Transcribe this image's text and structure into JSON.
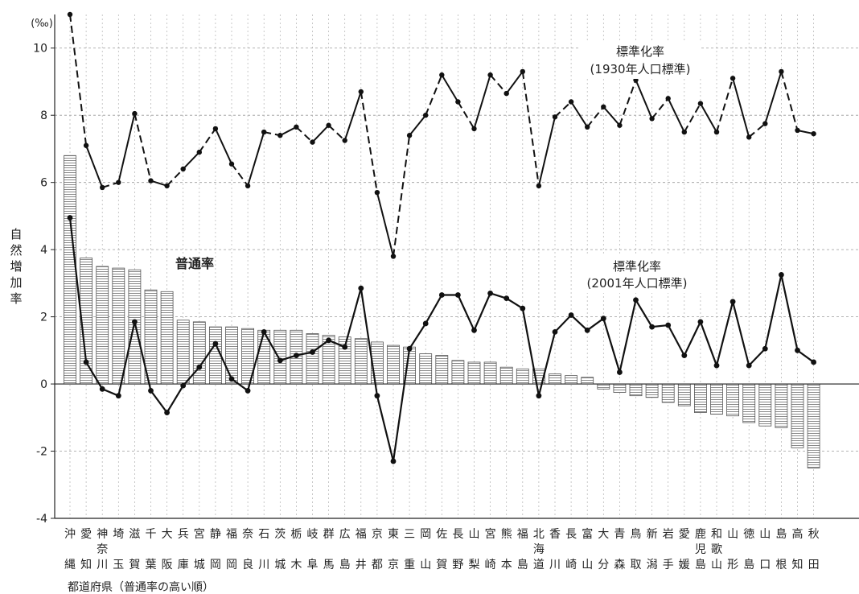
{
  "chart_data": {
    "type": "bar+line",
    "unit_label": "(‰)",
    "ylabel": "自然増加率",
    "xlabel": "都道府県（普通率の高い順）",
    "ylim": [
      -4,
      11
    ],
    "yticks": [
      -4,
      -2,
      0,
      2,
      4,
      6,
      8,
      10
    ],
    "grid": true,
    "categories": [
      "沖縄",
      "愛知",
      "神奈川",
      "埼玉",
      "滋賀",
      "千葉",
      "大阪",
      "兵庫",
      "宮城",
      "静岡",
      "福岡",
      "奈良",
      "石川",
      "茨城",
      "栃木",
      "岐阜",
      "群馬",
      "広島",
      "福井",
      "京都",
      "東京",
      "三重",
      "岡山",
      "佐賀",
      "長野",
      "山梨",
      "宮崎",
      "熊本",
      "福島",
      "北海道",
      "香川",
      "長崎",
      "富山",
      "大分",
      "青森",
      "鳥取",
      "新潟",
      "岩手",
      "愛媛",
      "鹿児島",
      "和歌山",
      "山形",
      "徳島",
      "山口",
      "島根",
      "高知",
      "秋田"
    ],
    "series": [
      {
        "name": "普通率",
        "kind": "bar",
        "values": [
          6.8,
          3.75,
          3.5,
          3.45,
          3.4,
          2.8,
          2.75,
          1.9,
          1.85,
          1.7,
          1.7,
          1.65,
          1.6,
          1.6,
          1.6,
          1.5,
          1.45,
          1.4,
          1.35,
          1.25,
          1.15,
          1.1,
          0.9,
          0.85,
          0.7,
          0.65,
          0.65,
          0.5,
          0.45,
          0.45,
          0.3,
          0.25,
          0.2,
          -0.15,
          -0.25,
          -0.35,
          -0.4,
          -0.55,
          -0.65,
          -0.85,
          -0.9,
          -0.95,
          -1.15,
          -1.25,
          -1.3,
          -1.9,
          -2.5
        ]
      },
      {
        "name": "標準化率（1930年人口標準）",
        "kind": "line-dashed",
        "values": [
          11.0,
          7.1,
          5.85,
          6.0,
          8.05,
          6.05,
          5.9,
          6.4,
          6.9,
          7.6,
          6.55,
          5.9,
          7.5,
          7.4,
          7.65,
          7.2,
          7.7,
          7.25,
          8.7,
          5.7,
          3.8,
          7.4,
          8.0,
          9.2,
          8.4,
          7.6,
          9.2,
          8.65,
          9.3,
          5.9,
          7.95,
          8.4,
          7.65,
          8.25,
          7.7,
          9.05,
          7.9,
          8.5,
          7.5,
          8.35,
          7.5,
          9.1,
          7.35,
          7.75,
          9.3,
          7.55,
          7.45
        ]
      },
      {
        "name": "標準化率（2001年人口標準）",
        "kind": "line-solid",
        "values": [
          4.95,
          0.65,
          -0.15,
          -0.35,
          1.85,
          -0.2,
          -0.85,
          -0.05,
          0.5,
          1.2,
          0.15,
          -0.2,
          1.55,
          0.7,
          0.85,
          0.95,
          1.3,
          1.1,
          2.85,
          -0.35,
          -2.3,
          1.05,
          1.8,
          2.65,
          2.65,
          1.6,
          2.7,
          2.55,
          2.25,
          -0.35,
          1.55,
          2.05,
          1.6,
          1.95,
          0.35,
          2.5,
          1.7,
          1.75,
          0.85,
          1.85,
          0.55,
          2.45,
          0.55,
          1.05,
          3.25,
          1.0,
          0.65
        ]
      }
    ],
    "annotations": {
      "bar_label": "普通率",
      "std1930_line1": "標準化率",
      "std1930_line2": "(1930年人口標準)",
      "std2001_line1": "標準化率",
      "std2001_line2": "(2001年人口標準)"
    }
  }
}
